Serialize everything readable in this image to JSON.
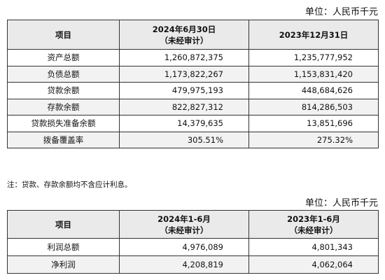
{
  "table1": {
    "unit": "单位：人民币千元",
    "header": {
      "item": "项目",
      "col1_line1": "2024年6月30日",
      "col1_line2": "（未经审计）",
      "col2": "2023年12月31日"
    },
    "rows": [
      {
        "label": "资产总额",
        "v1": "1,260,872,375",
        "v2": "1,235,777,952"
      },
      {
        "label": "负债总额",
        "v1": "1,173,822,267",
        "v2": "1,153,831,420"
      },
      {
        "label": "贷款余额",
        "v1": "479,975,193",
        "v2": "448,684,626"
      },
      {
        "label": "存款余额",
        "v1": "822,827,312",
        "v2": "814,286,503"
      },
      {
        "label": "贷款损失准备余额",
        "v1": "14,379,635",
        "v2": "13,851,696"
      },
      {
        "label": "拨备覆盖率",
        "v1": "305.51%",
        "v2": "275.32%"
      }
    ]
  },
  "note": "注：贷款、存款余额均不含应计利息。",
  "table2": {
    "unit": "单位：人民币千元",
    "header": {
      "item": "项目",
      "col1_line1": "2024年1-6月",
      "col1_line2": "（未经审计）",
      "col2_line1": "2023年1-6月",
      "col2_line2": "（未经审计）"
    },
    "rows": [
      {
        "label": "利润总额",
        "v1": "4,976,089",
        "v2": "4,801,343"
      },
      {
        "label": "净利润",
        "v1": "4,208,819",
        "v2": "4,062,064"
      }
    ]
  }
}
